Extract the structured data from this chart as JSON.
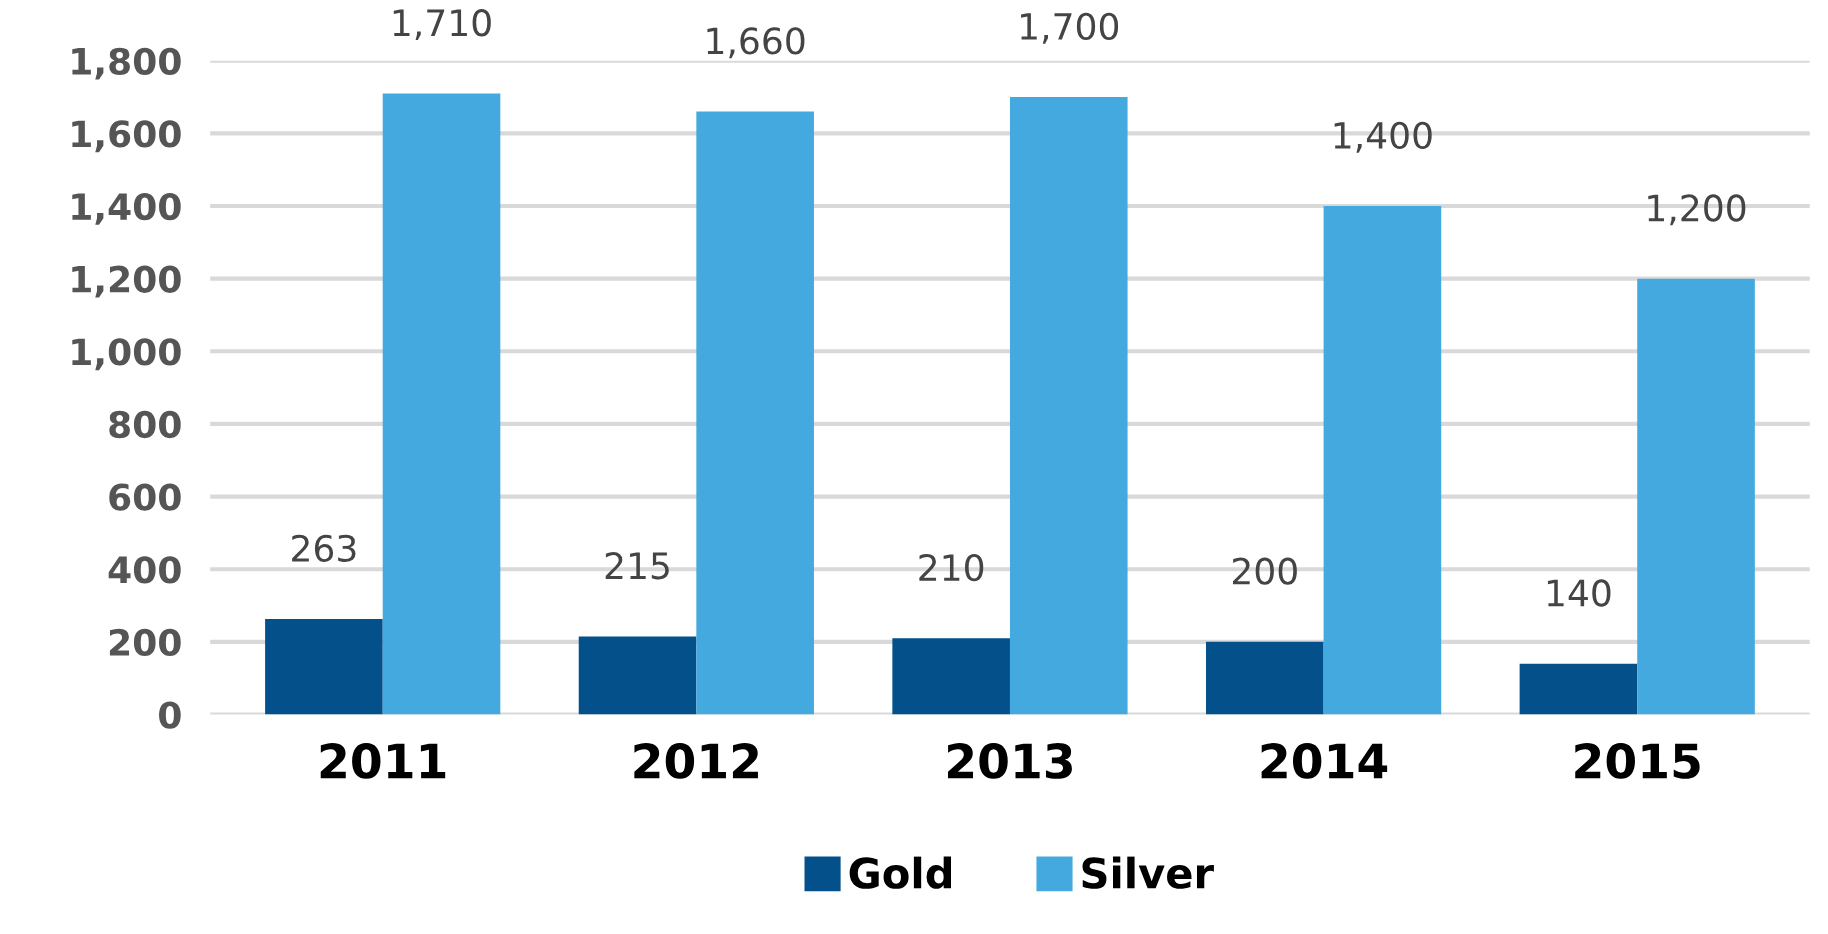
{
  "chart_data": {
    "type": "bar",
    "categories": [
      "2011",
      "2012",
      "2013",
      "2014",
      "2015"
    ],
    "series": [
      {
        "name": "Gold",
        "color": "#03508a",
        "values": [
          263,
          215,
          210,
          200,
          140
        ],
        "value_labels": [
          "263",
          "215",
          "210",
          "200",
          "140"
        ]
      },
      {
        "name": "Silver",
        "color": "#43a9df",
        "values": [
          1710,
          1660,
          1700,
          1400,
          1200
        ],
        "value_labels": [
          "1,710",
          "1,660",
          "1,700",
          "1,400",
          "1,200"
        ]
      }
    ],
    "ylim": [
      0,
      1800
    ],
    "yticks": [
      {
        "value": 0,
        "label": "0"
      },
      {
        "value": 200,
        "label": "200"
      },
      {
        "value": 400,
        "label": "400"
      },
      {
        "value": 600,
        "label": "600"
      },
      {
        "value": 800,
        "label": "800"
      },
      {
        "value": 1000,
        "label": "1,000"
      },
      {
        "value": 1200,
        "label": "1,200"
      },
      {
        "value": 1400,
        "label": "1,400"
      },
      {
        "value": 1600,
        "label": "1,600"
      },
      {
        "value": 1800,
        "label": "1,800"
      }
    ],
    "grid": "y",
    "legend": "bottom"
  }
}
